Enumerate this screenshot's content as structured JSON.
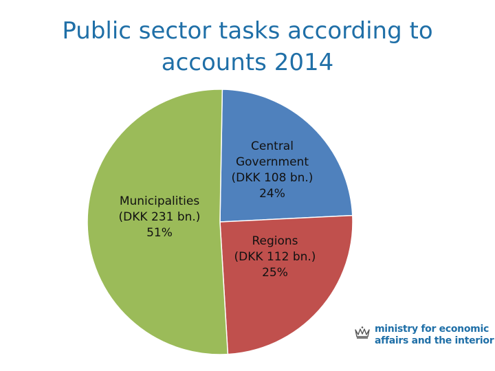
{
  "title": "Public sector tasks according to accounts 2014",
  "chart_data": {
    "type": "pie",
    "title": "Public sector tasks according to accounts 2014",
    "unit": "DKK bn.",
    "start_angle_deg": 1,
    "direction": "clockwise",
    "slices": [
      {
        "name": "Central Government",
        "value": 108,
        "percent": "24%",
        "label_lines": [
          "Central",
          "Government",
          "(DKK 108 bn.)",
          "24%"
        ],
        "color": "#4f81bd"
      },
      {
        "name": "Regions",
        "value": 112,
        "percent": "25%",
        "label_lines": [
          "Regions",
          "(DKK 112 bn.)",
          "25%"
        ],
        "color": "#c0504d"
      },
      {
        "name": "Municipalities",
        "value": 231,
        "percent": "51%",
        "label_lines": [
          "Municipalities",
          "(DKK 231 bn.)",
          "51%"
        ],
        "color": "#9bbb59"
      }
    ]
  },
  "logo": {
    "line1": "ministry for economic",
    "line2": "affairs and the interior",
    "icon": "crown-icon"
  }
}
